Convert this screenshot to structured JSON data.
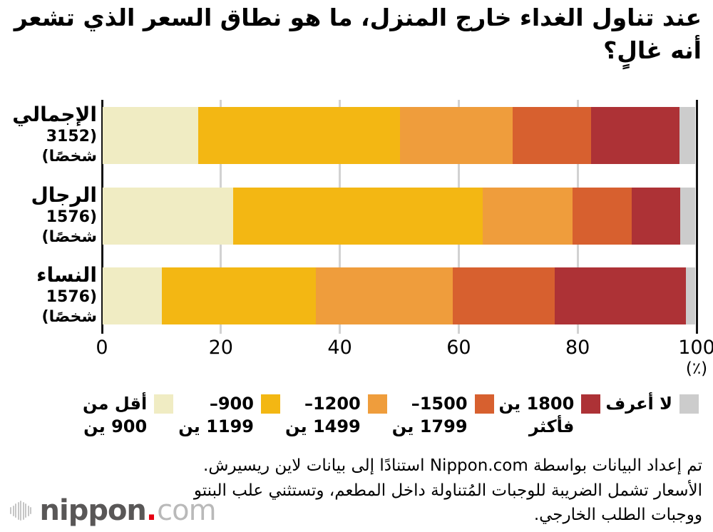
{
  "title": "عند تناول الغداء خارج المنزل، ما هو نطاق السعر الذي تشعر أنه غالٍ؟",
  "chart_data": {
    "type": "bar",
    "orientation": "horizontal",
    "stacked": true,
    "title": "عند تناول الغداء خارج المنزل، ما هو نطاق السعر الذي تشعر أنه غالٍ؟",
    "categories": [
      {
        "name": "الإجمالي",
        "count": "(3152 شخصًا)"
      },
      {
        "name": "الرجال",
        "count": "(1576 شخصًا)"
      },
      {
        "name": "النساء",
        "count": "(1576 شخصًا)"
      }
    ],
    "series": [
      {
        "name": "أقل من 900 ين",
        "color": "#f0ecc3",
        "values": [
          16.1,
          22.0,
          10.0
        ]
      },
      {
        "name": "900–1199 ين",
        "color": "#f3b713",
        "values": [
          33.9,
          41.9,
          25.9
        ]
      },
      {
        "name": "1200–1499 ين",
        "color": "#ef9d3c",
        "values": [
          19.0,
          15.1,
          23.0
        ]
      },
      {
        "name": "1500–1799 ين",
        "color": "#d7602f",
        "values": [
          13.1,
          10.0,
          17.1
        ]
      },
      {
        "name": "1800 ين فأكثر",
        "color": "#ad3236",
        "values": [
          14.9,
          8.1,
          22.1
        ]
      },
      {
        "name": "لا أعرف",
        "color": "#cccccc",
        "values": [
          2.7,
          2.6,
          1.6
        ]
      }
    ],
    "x_ticks": [
      "0",
      "20",
      "40",
      "60",
      "80",
      "100"
    ],
    "x_unit_label": "(٪)",
    "xlim": [
      0,
      100
    ],
    "grid": true,
    "legend_position": "bottom"
  },
  "legend_items": [
    {
      "line1": "أقل من",
      "line2": "900 ين",
      "color": "#f0ecc3"
    },
    {
      "line1": "900–",
      "line2": "1199 ين",
      "color": "#f3b713"
    },
    {
      "line1": "1200–",
      "line2": "1499 ين",
      "color": "#ef9d3c"
    },
    {
      "line1": "1500–",
      "line2": "1799 ين",
      "color": "#d7602f"
    },
    {
      "line1": "1800 ين",
      "line2": "فأكثر",
      "color": "#ad3236"
    },
    {
      "line1": "لا أعرف",
      "line2": "",
      "color": "#cccccc"
    }
  ],
  "footer_lines": [
    "تم إعداد البيانات بواسطة Nippon.com استنادًا إلى بيانات لاين ريسيرش.",
    "الأسعار تشمل الضريبة للوجبات المُتناولة داخل المطعم، وتستثني علب البنتو",
    "ووجبات الطلب الخارجي."
  ],
  "logo": {
    "brand_bold": "nippon",
    "brand_dot": ".",
    "brand_light": "com",
    "dot_color": "#e60012"
  },
  "colors": {
    "background": "#ffffff",
    "grid": "#d2d2d2",
    "axis": "#141414",
    "text": "#000000"
  }
}
